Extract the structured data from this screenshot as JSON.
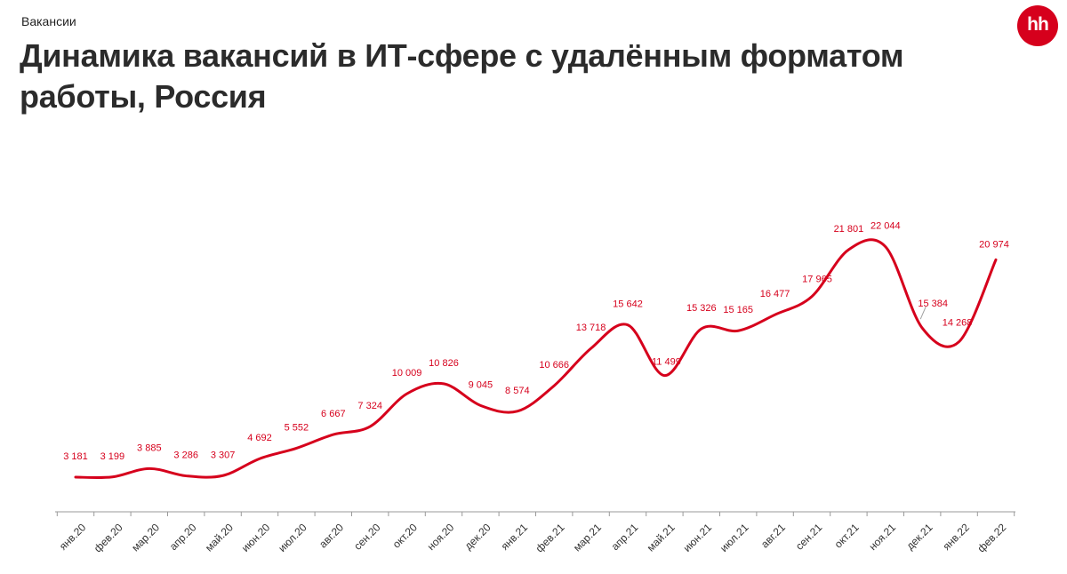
{
  "header": {
    "subtitle": "Вакансии",
    "title": "Динамика вакансий в ИТ-сфере с удалённым форматом работы, Россия",
    "logo_text": "hh"
  },
  "colors": {
    "line": "#d6001c",
    "axis": "#9a9a9a",
    "logo_bg": "#d6001c"
  },
  "chart_data": {
    "type": "line",
    "title": "Динамика вакансий в ИТ-сфере с удалённым форматом работы, Россия",
    "ylabel": "Вакансии",
    "xlabel": "",
    "grid": false,
    "ylim": [
      0,
      25000
    ],
    "categories": [
      "янв.20",
      "фев.20",
      "мар.20",
      "апр.20",
      "май.20",
      "июн.20",
      "июл.20",
      "авг.20",
      "сен.20",
      "окт.20",
      "ноя.20",
      "дек.20",
      "янв.21",
      "фев.21",
      "мар.21",
      "апр.21",
      "май.21",
      "июн.21",
      "июл.21",
      "авг.21",
      "сен.21",
      "окт.21",
      "ноя.21",
      "дек.21",
      "янв.22",
      "фев.22"
    ],
    "values": [
      3181,
      3199,
      3885,
      3286,
      3307,
      4692,
      5552,
      6667,
      7324,
      10009,
      10826,
      9045,
      8574,
      10666,
      13718,
      15642,
      11499,
      15326,
      15165,
      16477,
      17965,
      21801,
      22044,
      15384,
      14268,
      20974
    ],
    "data_labels": [
      "3 181",
      "3 199",
      "3 885",
      "3 286",
      "3 307",
      "4 692",
      "5 552",
      "6 667",
      "7 324",
      "10 009",
      "10 826",
      "9 045",
      "8 574",
      "10 666",
      "13 718",
      "15 642",
      "11 499",
      "15 326",
      "15 165",
      "16 477",
      "17 965",
      "21 801",
      "22 044",
      "15 384",
      "14 268",
      "20 974"
    ]
  }
}
